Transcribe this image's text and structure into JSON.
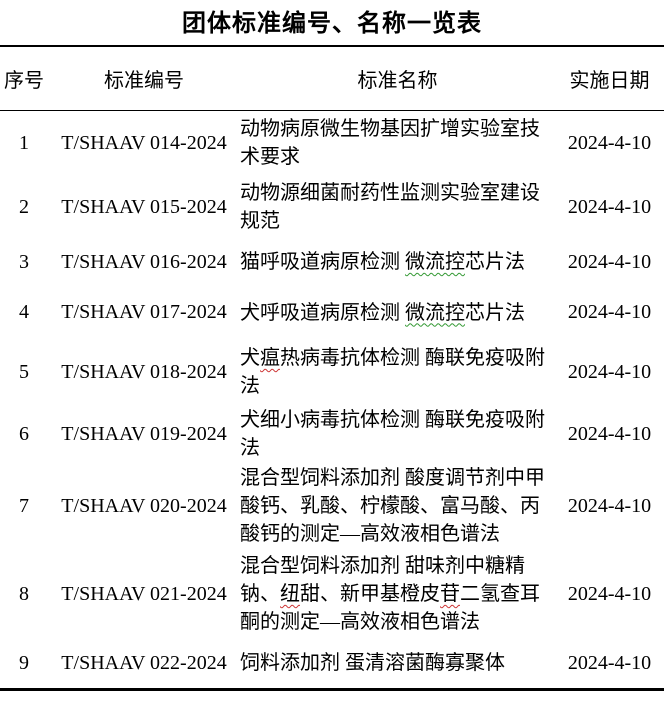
{
  "page": {
    "title": "团体标准编号、名称一览表"
  },
  "table": {
    "headers": [
      "序号",
      "标准编号",
      "标准名称",
      "实施日期"
    ],
    "squiggle_colors": {
      "green": "#339933",
      "red": "#cc3333"
    },
    "rows": [
      {
        "no": "1",
        "code": "T/SHAAV 014-2024",
        "name_parts": [
          {
            "text": "动物病原微生物基因扩增实验室技术要求"
          }
        ],
        "date": "2024-4-10"
      },
      {
        "no": "2",
        "code": "T/SHAAV 015-2024",
        "name_parts": [
          {
            "text": "动物源细菌耐药性监测实验室建设规范"
          }
        ],
        "date": "2024-4-10"
      },
      {
        "no": "3",
        "code": "T/SHAAV 016-2024",
        "name_parts": [
          {
            "text": "猫呼吸道病原检测 "
          },
          {
            "text": "微流控",
            "underline": "green"
          },
          {
            "text": "芯片法"
          }
        ],
        "date": "2024-4-10"
      },
      {
        "no": "4",
        "code": "T/SHAAV 017-2024",
        "name_parts": [
          {
            "text": "犬呼吸道病原检测 "
          },
          {
            "text": "微流控",
            "underline": "green"
          },
          {
            "text": "芯片法"
          }
        ],
        "date": "2024-4-10"
      },
      {
        "no": "5",
        "code": "T/SHAAV 018-2024",
        "name_parts": [
          {
            "text": "犬"
          },
          {
            "text": "瘟",
            "underline": "red"
          },
          {
            "text": "热病毒抗体检测 酶联免疫吸附法"
          }
        ],
        "date": "2024-4-10"
      },
      {
        "no": "6",
        "code": "T/SHAAV 019-2024",
        "name_parts": [
          {
            "text": "犬细小病毒抗体检测 酶联免疫吸附法"
          }
        ],
        "date": "2024-4-10"
      },
      {
        "no": "7",
        "code": "T/SHAAV 020-2024",
        "name_parts": [
          {
            "text": "混合型饲料添加剂 酸度调节剂中甲酸钙、乳酸、柠檬酸、富马酸、丙酸钙的测定—高效液相色谱法"
          }
        ],
        "date": "2024-4-10"
      },
      {
        "no": "8",
        "code": "T/SHAAV 021-2024",
        "name_parts": [
          {
            "text": "混合型饲料添加剂 甜味剂中糖精钠、"
          },
          {
            "text": "纽",
            "underline": "red"
          },
          {
            "text": "甜、新甲基橙皮"
          },
          {
            "text": "苷",
            "underline": "red"
          },
          {
            "text": "二氢查耳酮的测定—高效液相色谱法"
          }
        ],
        "date": "2024-4-10"
      },
      {
        "no": "9",
        "code": "T/SHAAV 022-2024",
        "name_parts": [
          {
            "text": "饲料添加剂 蛋清溶菌酶寡聚体"
          }
        ],
        "date": "2024-4-10"
      }
    ]
  }
}
